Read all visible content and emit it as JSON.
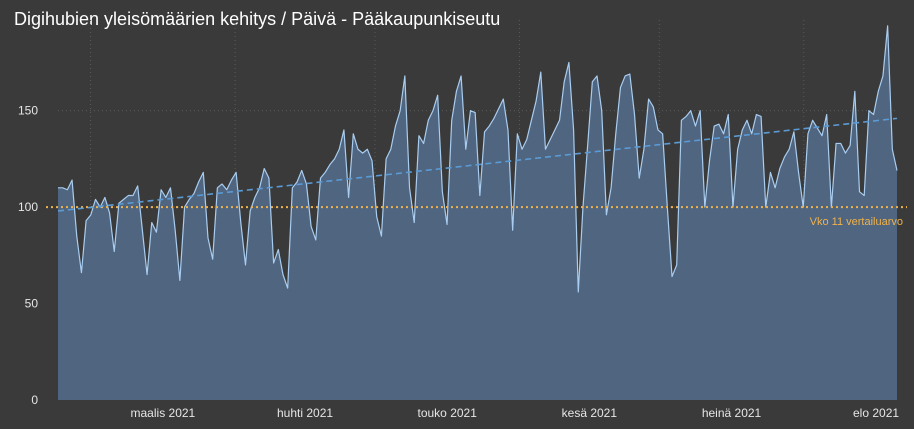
{
  "chart_data": {
    "type": "area",
    "title": "Digihubien yleisömäärien kehitys / Päivä - Pääkaupunkiseutu",
    "xlabel": "",
    "ylabel": "",
    "ylim": [
      0,
      197
    ],
    "yticks": [
      0,
      50,
      100,
      150
    ],
    "month_labels": [
      "maalis 2021",
      "huhti 2021",
      "touko 2021",
      "kesä 2021",
      "heinä 2021",
      "elo 2021"
    ],
    "month_starts": [
      "2021-03-01",
      "2021-04-01",
      "2021-05-01",
      "2021-06-01",
      "2021-07-01",
      "2021-08-01"
    ],
    "x_start": "2021-02-22",
    "x_end": "2021-08-21",
    "grid": true,
    "reference_line": {
      "value": 100,
      "label": "Vko 11 vertailuarvo",
      "color": "#f0b24a"
    },
    "trend_line": {
      "start": 98,
      "end": 146,
      "color": "#5b9bd5"
    },
    "series": [
      {
        "values": [
          110,
          110,
          109,
          114,
          85,
          66,
          93,
          96,
          104,
          100,
          105,
          97,
          77,
          102,
          104,
          106,
          106,
          111,
          88,
          65,
          92,
          87,
          109,
          105,
          110,
          88,
          62,
          100,
          104,
          107,
          113,
          118,
          84,
          73,
          110,
          112,
          109,
          114,
          118,
          92,
          70,
          98,
          105,
          110,
          120,
          115,
          71,
          78,
          65,
          58,
          110,
          113,
          119,
          112,
          90,
          83,
          115,
          118,
          122,
          125,
          130,
          140,
          105,
          138,
          130,
          128,
          130,
          124,
          95,
          85,
          125,
          130,
          142,
          150,
          168,
          110,
          92,
          137,
          133,
          145,
          150,
          158,
          108,
          91,
          145,
          160,
          168,
          130,
          150,
          149,
          106,
          139,
          142,
          146,
          151,
          156,
          140,
          88,
          138,
          130,
          135,
          145,
          155,
          170,
          130,
          135,
          140,
          145,
          165,
          175,
          140,
          56,
          100,
          132,
          165,
          168,
          150,
          96,
          110,
          138,
          162,
          168,
          169,
          148,
          115,
          130,
          156,
          152,
          140,
          138,
          100,
          64,
          70,
          145,
          147,
          150,
          142,
          150,
          100,
          124,
          142,
          143,
          138,
          148,
          100,
          130,
          140,
          145,
          138,
          148,
          147,
          100,
          118,
          110,
          120,
          126,
          130,
          139,
          118,
          100,
          138,
          145,
          141,
          137,
          148,
          100,
          133,
          133,
          128,
          132,
          160,
          108,
          106,
          150,
          148,
          160,
          168,
          194,
          130,
          119
        ]
      }
    ]
  }
}
